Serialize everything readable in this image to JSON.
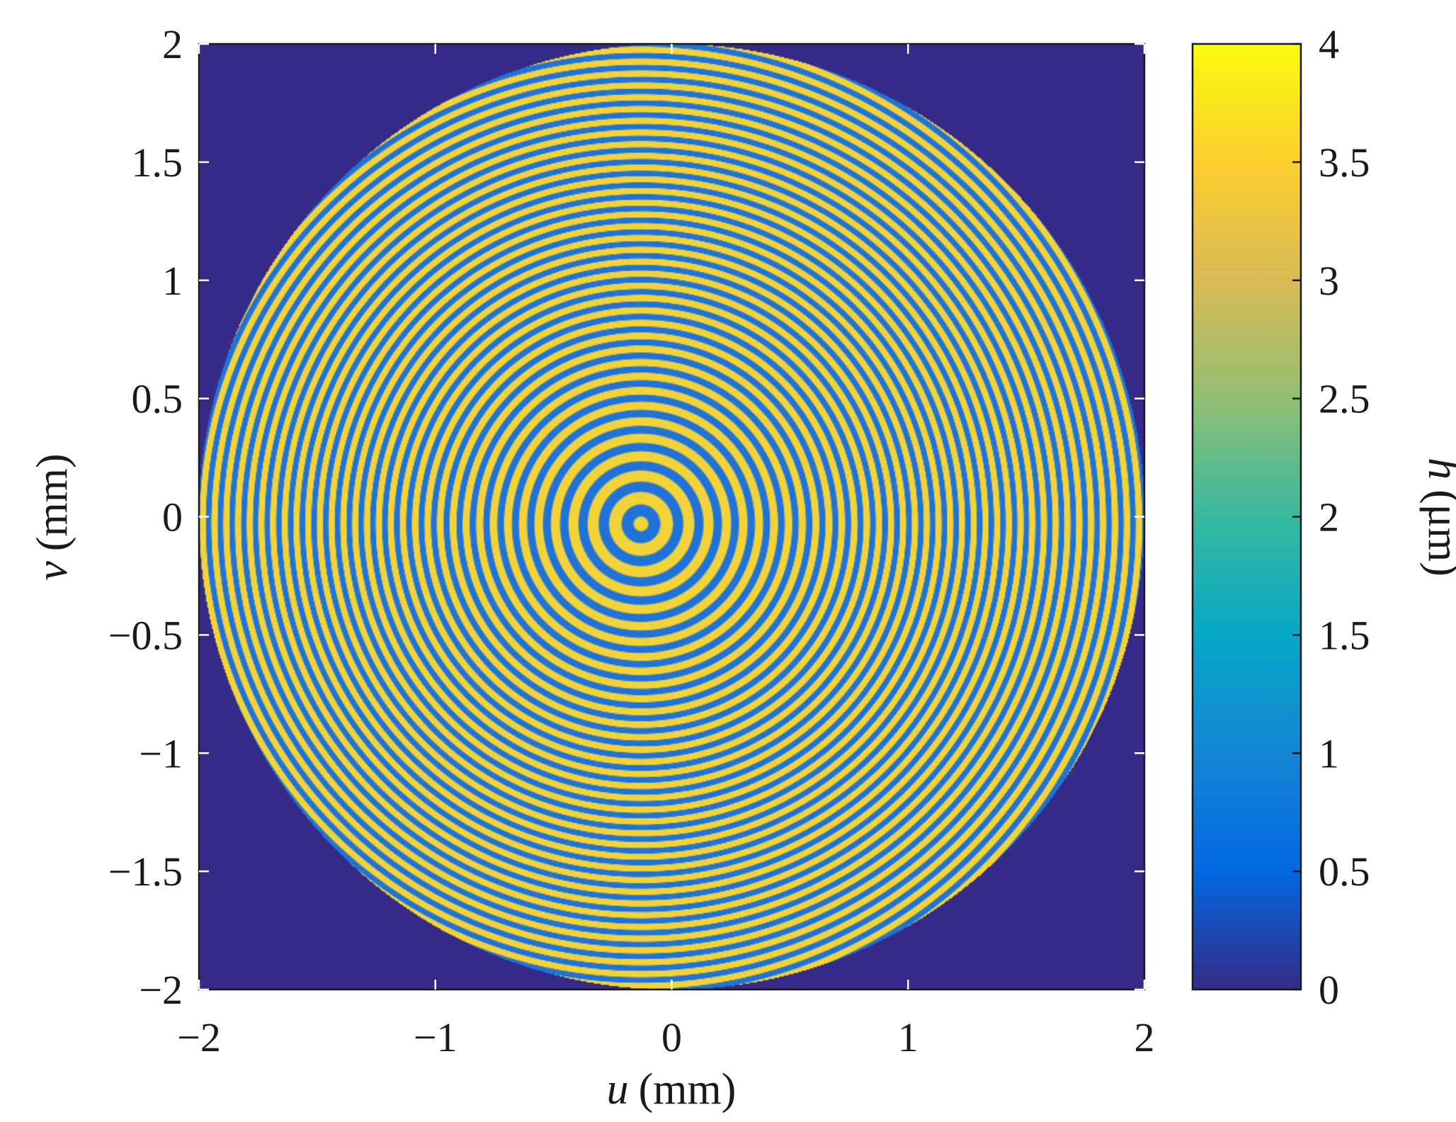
{
  "chart_data": [
    {
      "type": "heatmap",
      "title": "",
      "xlabel_var": "u",
      "xlabel_unit": "(mm)",
      "ylabel_var": "v",
      "ylabel_unit": "(mm)",
      "xlim": [
        -2,
        2
      ],
      "ylim": [
        -2,
        2
      ],
      "x_ticks": [
        -2,
        -1,
        0,
        1,
        2
      ],
      "x_tick_labels": [
        "−2",
        "−1",
        "0",
        "1",
        "2"
      ],
      "y_ticks": [
        2,
        1.5,
        1,
        0.5,
        0,
        -0.5,
        -1,
        -1.5,
        -2
      ],
      "y_tick_labels": [
        "2",
        "1.5",
        "1",
        "0.5",
        "0",
        "−0.5",
        "−1",
        "−1.5",
        "−2"
      ],
      "grid": false,
      "aperture": {
        "shape": "circle",
        "center": [
          0,
          0
        ],
        "radius": 2
      },
      "pattern": {
        "description_kind": "concentric fringe rings, centre offset to negative u",
        "ring_center": [
          -0.13,
          -0.03
        ],
        "ring_pitch_near_center": 0.12,
        "ring_pitch_far": 0.055,
        "value_range": [
          0,
          4
        ],
        "background_value": 0
      },
      "colors": {
        "background": "#352a87",
        "fringe_high": "#f2d33a",
        "fringe_low": "#1f73d8"
      }
    },
    {
      "type": "colorbar",
      "label_var": "h",
      "label_unit": "(μm)",
      "range": [
        0,
        4
      ],
      "ticks": [
        4,
        3.5,
        3,
        2.5,
        2,
        1.5,
        1,
        0.5,
        0
      ],
      "tick_labels": [
        "4",
        "3.5",
        "3",
        "2.5",
        "2",
        "1.5",
        "1",
        "0.5",
        "0"
      ],
      "colormap": "parula",
      "colormap_stops": [
        "#352a87",
        "#0268e1",
        "#1485d4",
        "#06a7c6",
        "#38b99e",
        "#92bf73",
        "#d9ba56",
        "#fcce2e",
        "#f9fb0e"
      ]
    }
  ]
}
